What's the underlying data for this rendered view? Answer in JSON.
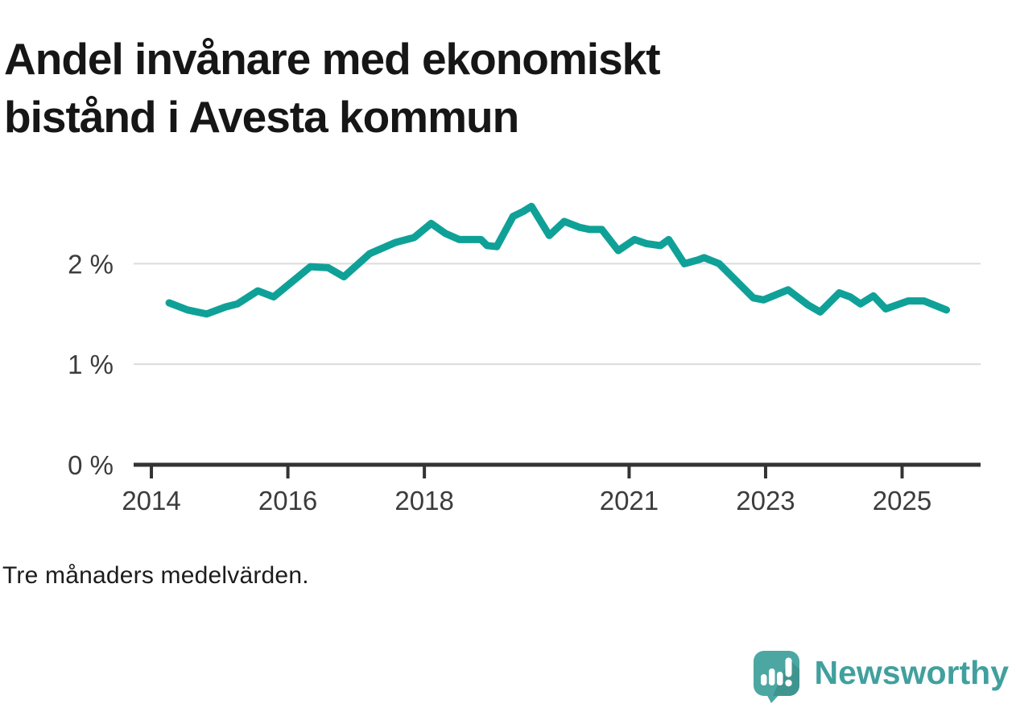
{
  "header": {
    "title_lines": [
      "Andel invånare med ekonomiskt",
      "bistånd i Avesta kommun"
    ]
  },
  "footnote": "Tre månaders medelvärden.",
  "logo": {
    "text": "Newsworthy",
    "icon": "newsworthy-speech-bubble-barchart-exclamation"
  },
  "colors": {
    "line": "#0fa197",
    "grid": "#dbdbdb",
    "axis": "#333333",
    "tick_label": "#3c3c3c",
    "title": "#161616",
    "note": "#1c1c1c",
    "logo_teal": "#4ca7a2",
    "logo_shadow": "#3f948f",
    "logo_text": "#41a09e",
    "logo_glyph": "#ffffff",
    "background": "#ffffff"
  },
  "chart_data": {
    "type": "line",
    "title": "Andel invånare med ekonomiskt bistånd i Avesta kommun",
    "note": "Tre månaders medelvärden.",
    "xlabel": "",
    "ylabel": "",
    "unit": "%",
    "grid": "horizontal",
    "legend_position": "none",
    "xlim": [
      2013.74,
      2026.15
    ],
    "ylim": [
      0,
      2.7
    ],
    "x_ticks": [
      {
        "label": "2014",
        "value": 2014
      },
      {
        "label": "2016",
        "value": 2016
      },
      {
        "label": "2018",
        "value": 2018
      },
      {
        "label": "2021",
        "value": 2021
      },
      {
        "label": "2023",
        "value": 2023
      },
      {
        "label": "2025",
        "value": 2025
      }
    ],
    "y_ticks": [
      {
        "label": "0 %",
        "value": 0
      },
      {
        "label": "1 %",
        "value": 1
      },
      {
        "label": "2 %",
        "value": 2
      }
    ],
    "series": [
      {
        "name": "Andel invånare med ekonomiskt bistånd",
        "color": "#0fa197",
        "points": [
          [
            2014.26,
            1.61
          ],
          [
            2014.53,
            1.54
          ],
          [
            2014.81,
            1.5
          ],
          [
            2015.09,
            1.57
          ],
          [
            2015.26,
            1.6
          ],
          [
            2015.56,
            1.73
          ],
          [
            2015.79,
            1.67
          ],
          [
            2016.33,
            1.97
          ],
          [
            2016.59,
            1.96
          ],
          [
            2016.82,
            1.87
          ],
          [
            2017.2,
            2.1
          ],
          [
            2017.57,
            2.21
          ],
          [
            2017.85,
            2.26
          ],
          [
            2018.1,
            2.4
          ],
          [
            2018.31,
            2.3
          ],
          [
            2018.51,
            2.24
          ],
          [
            2018.66,
            2.24
          ],
          [
            2018.83,
            2.24
          ],
          [
            2018.92,
            2.18
          ],
          [
            2019.06,
            2.17
          ],
          [
            2019.3,
            2.47
          ],
          [
            2019.45,
            2.52
          ],
          [
            2019.57,
            2.57
          ],
          [
            2019.83,
            2.28
          ],
          [
            2020.05,
            2.42
          ],
          [
            2020.28,
            2.36
          ],
          [
            2020.42,
            2.34
          ],
          [
            2020.6,
            2.34
          ],
          [
            2020.84,
            2.13
          ],
          [
            2021.08,
            2.24
          ],
          [
            2021.25,
            2.2
          ],
          [
            2021.46,
            2.18
          ],
          [
            2021.58,
            2.24
          ],
          [
            2021.81,
            2.0
          ],
          [
            2022.02,
            2.04
          ],
          [
            2022.1,
            2.06
          ],
          [
            2022.32,
            2.0
          ],
          [
            2022.82,
            1.66
          ],
          [
            2022.97,
            1.64
          ],
          [
            2023.33,
            1.74
          ],
          [
            2023.62,
            1.59
          ],
          [
            2023.8,
            1.52
          ],
          [
            2024.08,
            1.71
          ],
          [
            2024.24,
            1.67
          ],
          [
            2024.39,
            1.6
          ],
          [
            2024.58,
            1.68
          ],
          [
            2024.76,
            1.55
          ],
          [
            2025.09,
            1.63
          ],
          [
            2025.32,
            1.63
          ],
          [
            2025.65,
            1.54
          ]
        ]
      }
    ]
  }
}
